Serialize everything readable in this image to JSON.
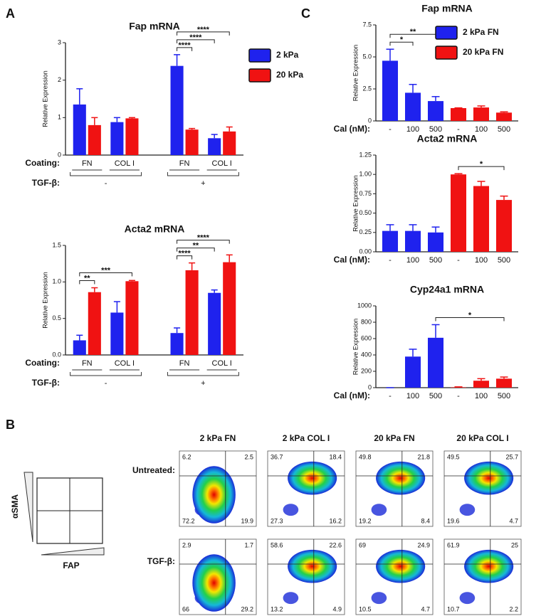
{
  "panels": [
    "A",
    "B",
    "C"
  ],
  "chart_data": [
    {
      "type": "bar",
      "title": "Fap mRNA",
      "y_label": "Relative Expression",
      "legend": true,
      "categories": [
        "FN",
        "COL I",
        "FN",
        "COL I"
      ],
      "groups": [
        {
          "label": "-",
          "span": 2
        },
        {
          "label": "+",
          "span": 2
        }
      ],
      "row_labels": [
        "Coating:",
        "TGF-β:"
      ],
      "series": [
        {
          "name": "2 kPa",
          "color": "#1f22ee",
          "values": [
            1.35,
            0.88,
            2.38,
            0.45
          ],
          "errors": [
            0.42,
            0.12,
            0.3,
            0.1
          ]
        },
        {
          "name": "20 kPa",
          "color": "#f01212",
          "values": [
            0.8,
            0.98,
            0.68,
            0.63
          ],
          "errors": [
            0.2,
            0.02,
            0.03,
            0.12
          ]
        }
      ],
      "ylim": [
        0,
        3
      ],
      "yticks": [
        0,
        1,
        2,
        3
      ],
      "significance": [
        {
          "label": "****",
          "bars": [
            4,
            5
          ]
        },
        {
          "label": "****",
          "bars": [
            4,
            6
          ]
        },
        {
          "label": "****",
          "bars": [
            4,
            7
          ]
        }
      ]
    },
    {
      "type": "bar",
      "title": "Acta2 mRNA",
      "y_label": "Relative Expression",
      "legend": false,
      "categories": [
        "FN",
        "COL I",
        "FN",
        "COL I"
      ],
      "groups": [
        {
          "label": "-",
          "span": 2
        },
        {
          "label": "+",
          "span": 2
        }
      ],
      "row_labels": [
        "Coating:",
        "TGF-β:"
      ],
      "series": [
        {
          "name": "2 kPa",
          "color": "#1f22ee",
          "values": [
            0.2,
            0.58,
            0.3,
            0.85
          ],
          "errors": [
            0.07,
            0.15,
            0.07,
            0.04
          ]
        },
        {
          "name": "20 kPa",
          "color": "#f01212",
          "values": [
            0.86,
            1.01,
            1.16,
            1.27
          ],
          "errors": [
            0.06,
            0.01,
            0.1,
            0.1
          ]
        }
      ],
      "ylim": [
        0,
        1.5
      ],
      "yticks": [
        {
          "value": 0,
          "label": "0.0"
        },
        0.5,
        {
          "value": 1,
          "label": "1.0"
        },
        1.5
      ],
      "significance": [
        {
          "label": "**",
          "bars": [
            0,
            1
          ]
        },
        {
          "label": "***",
          "bars": [
            0,
            3
          ]
        },
        {
          "label": "****",
          "bars": [
            4,
            5
          ]
        },
        {
          "label": "**",
          "bars": [
            4,
            6
          ]
        },
        {
          "label": "****",
          "bars": [
            4,
            7
          ]
        }
      ]
    },
    {
      "type": "bar",
      "title": "Fap mRNA",
      "y_label": "Relative Expression",
      "legend": true,
      "categories": [
        "-",
        "100",
        "500",
        "-",
        "100",
        "500"
      ],
      "row_labels": [
        "Cal (nM):"
      ],
      "series": [
        {
          "name": "2 kPa FN",
          "color": "#1f22ee",
          "values": [
            4.7,
            2.2,
            1.55,
            null,
            null,
            null
          ],
          "errors": [
            0.9,
            0.65,
            0.35,
            null,
            null,
            null
          ]
        },
        {
          "name": "20 kPa FN",
          "color": "#f01212",
          "values": [
            null,
            null,
            null,
            1.0,
            1.05,
            0.65
          ],
          "errors": [
            null,
            null,
            null,
            0.02,
            0.12,
            0.06
          ]
        }
      ],
      "ylim": [
        0,
        7.5
      ],
      "yticks": [
        0,
        2.5,
        {
          "value": 5,
          "label": "5.0"
        },
        7.5
      ],
      "significance": [
        {
          "label": "*",
          "bars": [
            0,
            1
          ]
        },
        {
          "label": "**",
          "bars": [
            0,
            2
          ]
        }
      ]
    },
    {
      "type": "bar",
      "title": "Acta2 mRNA",
      "y_label": "Relative Expression",
      "legend": false,
      "categories": [
        "-",
        "100",
        "500",
        "-",
        "100",
        "500"
      ],
      "row_labels": [
        "Cal (nM):"
      ],
      "series": [
        {
          "name": "2 kPa FN",
          "color": "#1f22ee",
          "values": [
            0.27,
            0.27,
            0.25,
            null,
            null,
            null
          ],
          "errors": [
            0.08,
            0.08,
            0.07,
            null,
            null,
            null
          ]
        },
        {
          "name": "20 kPa FN",
          "color": "#f01212",
          "values": [
            null,
            null,
            null,
            1.0,
            0.85,
            0.67
          ],
          "errors": [
            null,
            null,
            null,
            0.01,
            0.06,
            0.05
          ]
        }
      ],
      "ylim": [
        0,
        1.25
      ],
      "yticks": [
        {
          "value": 0,
          "label": "0.00"
        },
        0.25,
        {
          "value": 0.5,
          "label": "0.50"
        },
        0.75,
        {
          "value": 1,
          "label": "1.00"
        },
        1.25
      ],
      "significance": [
        {
          "label": "*",
          "bars": [
            3,
            5
          ]
        }
      ]
    },
    {
      "type": "bar",
      "title": "Cyp24a1 mRNA",
      "y_label": "Relative Expression",
      "legend": false,
      "categories": [
        "-",
        "100",
        "500",
        "-",
        "100",
        "500"
      ],
      "row_labels": [
        "Cal (nM):"
      ],
      "series": [
        {
          "name": "2 kPa FN",
          "color": "#1f22ee",
          "values": [
            0,
            380,
            610,
            null,
            null,
            null
          ],
          "errors": [
            0,
            90,
            160,
            null,
            null,
            null
          ]
        },
        {
          "name": "20 kPa FN",
          "color": "#f01212",
          "values": [
            null,
            null,
            null,
            5,
            85,
            110
          ],
          "errors": [
            null,
            null,
            null,
            5,
            25,
            20
          ]
        }
      ],
      "ylim": [
        0,
        1000
      ],
      "yticks": [
        0,
        200,
        400,
        600,
        800,
        1000
      ],
      "significance": [
        {
          "label": "*",
          "bars": [
            2,
            5
          ]
        }
      ]
    }
  ],
  "flow": {
    "x_label": "FAP",
    "y_label": "αSMA",
    "columns": [
      "2 kPa FN",
      "2 kPa COL I",
      "20 kPa FN",
      "20 kPa COL I"
    ],
    "rows": [
      "Untreated:",
      "TGF-β:"
    ],
    "plots": [
      [
        [
          6.2,
          2.5,
          72.2,
          19.9
        ],
        [
          36.7,
          18.4,
          27.3,
          16.2
        ],
        [
          49.8,
          21.8,
          19.2,
          8.4
        ],
        [
          49.5,
          25.7,
          19.6,
          4.7
        ]
      ],
      [
        [
          2.9,
          1.7,
          66,
          29.2
        ],
        [
          58.6,
          22.6,
          13.2,
          4.9
        ],
        [
          69,
          24.9,
          10.5,
          4.7
        ],
        [
          61.9,
          25,
          10.7,
          2.2
        ]
      ]
    ]
  }
}
